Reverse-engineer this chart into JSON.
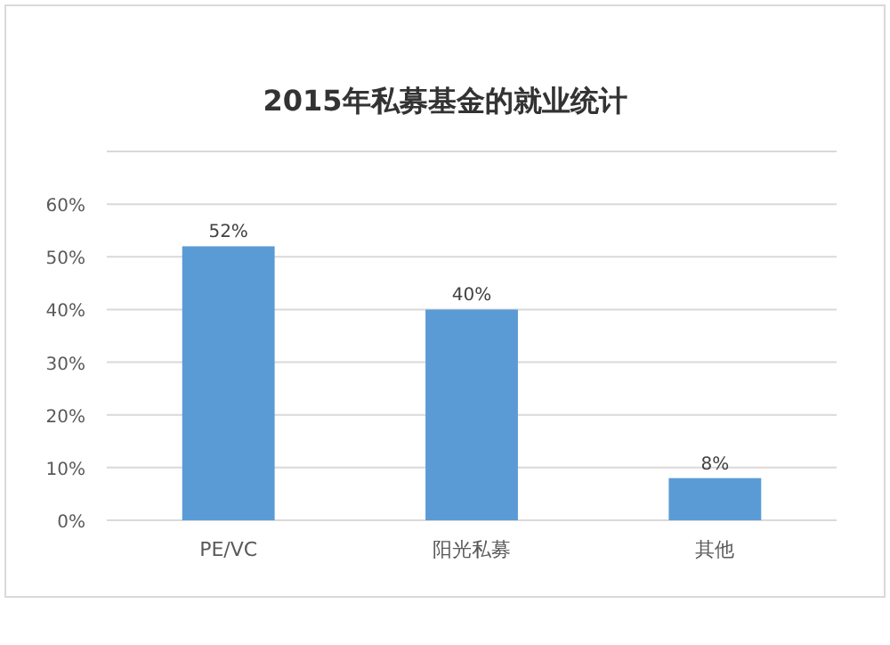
{
  "chart_data": {
    "type": "bar",
    "title": "2015年私募基金的就业统计",
    "categories": [
      "PE/VC",
      "阳光私募",
      "其他"
    ],
    "values": [
      52,
      40,
      8
    ],
    "value_labels": [
      "52%",
      "40%",
      "8%"
    ],
    "color": "#5b9bd5",
    "ylim": [
      0,
      70
    ],
    "yticks": [
      {
        "value": 0,
        "label": "0%"
      },
      {
        "value": 10,
        "label": "10%"
      },
      {
        "value": 20,
        "label": "20%"
      },
      {
        "value": 30,
        "label": "30%"
      },
      {
        "value": 40,
        "label": "40%"
      },
      {
        "value": 50,
        "label": "50%"
      },
      {
        "value": 60,
        "label": "60%"
      },
      {
        "value": 70,
        "label": null
      }
    ],
    "grid": "y"
  }
}
